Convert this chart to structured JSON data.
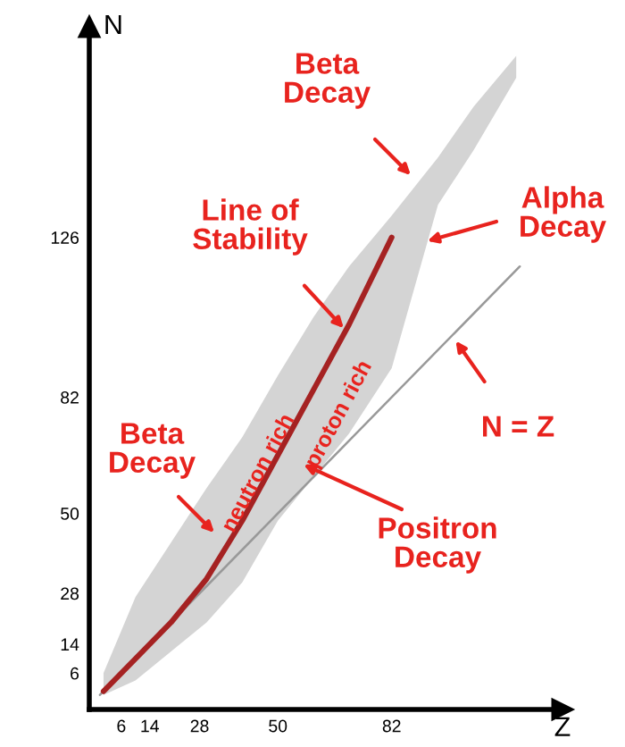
{
  "chart_data": {
    "type": "line",
    "xlabel": "Z",
    "ylabel": "N",
    "xlim": [
      -3,
      130
    ],
    "ylim": [
      -4,
      184
    ],
    "xticks": [
      6,
      14,
      28,
      50,
      82
    ],
    "yticks": [
      6,
      14,
      28,
      50,
      82,
      126
    ],
    "grid": false,
    "legend": false,
    "marker": "none",
    "line_style": "solid",
    "series": [
      {
        "color": "#999999",
        "x": [
          0,
          118
        ],
        "values": [
          0,
          118
        ]
      },
      {
        "color": "#a52222",
        "x": [
          1,
          10,
          20,
          30,
          40,
          50,
          60,
          70,
          82,
          95,
          105,
          117
        ],
        "values": [
          1,
          10,
          20,
          32,
          48,
          66,
          84,
          102,
          126,
          null,
          null,
          null
        ],
        "lower": [
          0,
          4,
          12,
          20,
          31,
          48,
          60,
          72,
          90,
          135,
          150,
          170
        ],
        "upper": [
          6,
          27,
          42,
          57,
          71,
          88,
          104,
          118,
          132,
          148,
          162,
          176
        ]
      }
    ],
    "annotations": [
      "Beta\nDecay",
      {
        "text": "Alpha\nDecay",
        "x": 92,
        "y": 125
      },
      {
        "text": "Line of\nStability",
        "x": 68.5,
        "y": 101
      },
      "Beta\nDecay",
      "Positron\nDecay",
      {
        "text": "N = Z",
        "x": 100,
        "y": 97.5
      },
      "neutron rich",
      "proton rich"
    ]
  }
}
